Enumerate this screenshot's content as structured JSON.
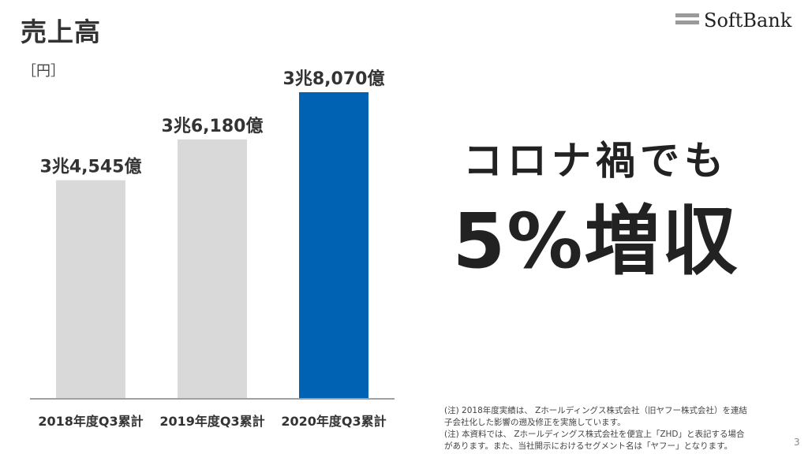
{
  "title": "売上高",
  "logo": {
    "text": "SoftBank",
    "icon": "softbank-bars-logo"
  },
  "unit": "［円］",
  "headline": {
    "line1": "コロナ禍でも",
    "line2": "5%増収"
  },
  "notes": [
    "(注) 2018年度実績は、 Zホールディングス株式会社（旧ヤフー株式会社）を連結",
    "子会社化した影響の遡及修正を実施しています。",
    "(注) 本資料では、 Zホールディングス株式会社を便宜上「ZHD」と表記する場合",
    "があります。また、当社開示におけるセグメント名は「ヤフー」となります。"
  ],
  "page_number": "3",
  "colors": {
    "highlight": "#0062b3",
    "default": "#d9d9d9",
    "axis": "#a0a0a0",
    "text": "#333333"
  },
  "chart_data": {
    "type": "bar",
    "categories": [
      "2018年度Q3累計",
      "2019年度Q3累計",
      "2020年度Q3累計"
    ],
    "values": [
      34545,
      36180,
      38070
    ],
    "value_unit": "億円",
    "data_labels": [
      "3兆4,545億",
      "3兆6,180億",
      "3兆8,070億"
    ],
    "highlight_index": 2,
    "ylabel": "［円］",
    "title": "売上高"
  }
}
